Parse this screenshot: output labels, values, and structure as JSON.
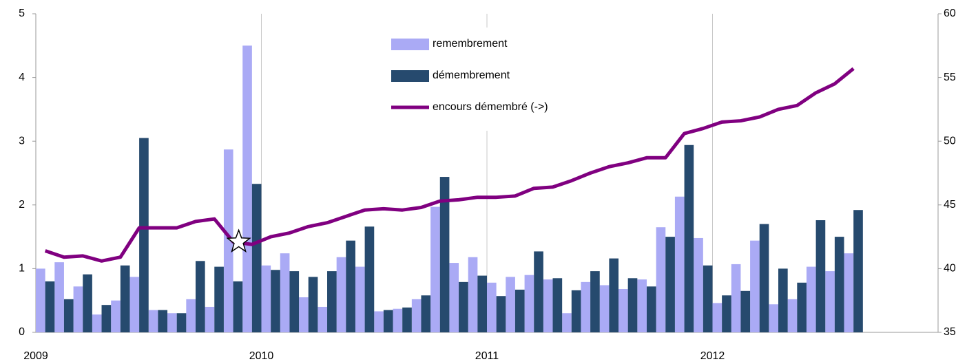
{
  "chart_data": {
    "type": "bar",
    "categories": [
      "2009",
      null,
      null,
      null,
      null,
      null,
      null,
      null,
      null,
      null,
      null,
      null,
      "2010",
      null,
      null,
      null,
      null,
      null,
      null,
      null,
      null,
      null,
      null,
      null,
      "2011",
      null,
      null,
      null,
      null,
      null,
      null,
      null,
      null,
      null,
      null,
      null,
      "2012",
      null,
      null,
      null,
      null,
      null,
      null,
      null
    ],
    "series": [
      {
        "name": "remembrement",
        "color": "#aaaaf5",
        "values": [
          1.0,
          1.1,
          0.72,
          0.28,
          0.5,
          0.87,
          0.35,
          0.3,
          0.52,
          0.4,
          2.87,
          4.5,
          1.05,
          1.24,
          0.55,
          0.4,
          1.18,
          1.03,
          0.33,
          0.37,
          0.52,
          1.97,
          1.09,
          1.18,
          0.78,
          0.87,
          0.9,
          0.83,
          0.3,
          0.79,
          0.74,
          0.68,
          0.83,
          1.65,
          2.13,
          1.48,
          0.46,
          1.07,
          1.44,
          0.44,
          0.52,
          1.03,
          0.96,
          1.24
        ]
      },
      {
        "name": "démembrement",
        "color": "#264a6e",
        "values": [
          0.8,
          0.52,
          0.91,
          0.43,
          1.05,
          3.05,
          0.35,
          0.3,
          1.12,
          1.03,
          0.8,
          2.33,
          0.98,
          0.96,
          0.87,
          0.96,
          1.44,
          1.66,
          0.35,
          0.39,
          0.58,
          2.44,
          0.79,
          0.89,
          0.57,
          0.67,
          1.27,
          0.85,
          0.66,
          0.96,
          1.16,
          0.85,
          0.72,
          1.5,
          2.94,
          1.05,
          0.58,
          0.65,
          1.7,
          1.0,
          0.78,
          1.76,
          1.5,
          1.92
        ]
      },
      {
        "name": "encours démembré (->)",
        "color": "#800080",
        "type": "line",
        "axis": "y2",
        "values": [
          41.4,
          40.9,
          41.0,
          40.6,
          40.9,
          43.2,
          43.2,
          43.2,
          43.7,
          43.9,
          42.1,
          41.9,
          42.5,
          42.8,
          43.3,
          43.6,
          44.1,
          44.6,
          44.7,
          44.6,
          44.8,
          45.3,
          45.4,
          45.6,
          45.6,
          45.7,
          46.3,
          46.4,
          46.9,
          47.5,
          48.0,
          48.3,
          48.7,
          48.7,
          50.6,
          51.0,
          51.5,
          51.6,
          51.9,
          52.5,
          52.8,
          53.8,
          54.5,
          55.7
        ]
      }
    ],
    "ylim": [
      0,
      5
    ],
    "yticks": [
      0,
      1,
      2,
      3,
      4,
      5
    ],
    "y2lim": [
      35,
      60
    ],
    "y2ticks": [
      35,
      40,
      45,
      50,
      55,
      60
    ],
    "months_on_axis": 48,
    "annotation_marker_index": 10,
    "legend": "top-center"
  }
}
